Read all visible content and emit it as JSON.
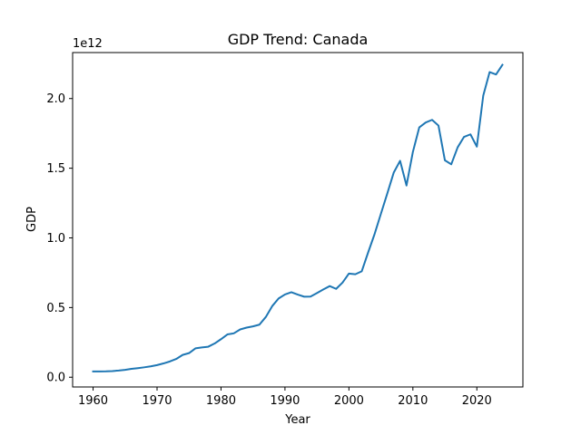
{
  "chart_data": {
    "type": "line",
    "title": "GDP Trend: Canada",
    "xlabel": "Year",
    "ylabel": "GDP",
    "y_scale_label": "1e12",
    "xlim": [
      1956.8,
      2027.2
    ],
    "ylim": [
      -70000000000.0,
      2330000000000.0
    ],
    "x_ticks": [
      1960,
      1970,
      1980,
      1990,
      2000,
      2010,
      2020
    ],
    "x_tick_labels": [
      "1960",
      "1970",
      "1980",
      "1990",
      "2000",
      "2010",
      "2020"
    ],
    "y_ticks": [
      0,
      500000000000.0,
      1000000000000.0,
      1500000000000.0,
      2000000000000.0
    ],
    "y_tick_labels": [
      "0.0",
      "0.5",
      "1.0",
      "1.5",
      "2.0"
    ],
    "grid": false,
    "series": [
      {
        "color": "#1f77b4",
        "x": [
          1960,
          1961,
          1962,
          1963,
          1964,
          1965,
          1966,
          1967,
          1968,
          1969,
          1970,
          1971,
          1972,
          1973,
          1974,
          1975,
          1976,
          1977,
          1978,
          1979,
          1980,
          1981,
          1982,
          1983,
          1984,
          1985,
          1986,
          1987,
          1988,
          1989,
          1990,
          1991,
          1992,
          1993,
          1994,
          1995,
          1996,
          1997,
          1998,
          1999,
          2000,
          2001,
          2002,
          2003,
          2004,
          2005,
          2006,
          2007,
          2008,
          2009,
          2010,
          2011,
          2012,
          2013,
          2014,
          2015,
          2016,
          2017,
          2018,
          2019,
          2020,
          2021,
          2022,
          2023,
          2024
        ],
        "y": [
          41000000000.0,
          41000000000.0,
          42000000000.0,
          44000000000.0,
          48000000000.0,
          53000000000.0,
          60000000000.0,
          65000000000.0,
          71000000000.0,
          78000000000.0,
          87000000000.0,
          99000000000.0,
          113000000000.0,
          131000000000.0,
          160000000000.0,
          173000000000.0,
          207000000000.0,
          214000000000.0,
          219000000000.0,
          242000000000.0,
          273000000000.0,
          307000000000.0,
          315000000000.0,
          343000000000.0,
          356000000000.0,
          365000000000.0,
          377000000000.0,
          432000000000.0,
          510000000000.0,
          565000000000.0,
          594000000000.0,
          610000000000.0,
          593000000000.0,
          578000000000.0,
          579000000000.0,
          604000000000.0,
          630000000000.0,
          654000000000.0,
          634000000000.0,
          679000000000.0,
          744000000000.0,
          739000000000.0,
          760000000000.0,
          895000000000.0,
          1026000000000.0,
          1173000000000.0,
          1319000000000.0,
          1468000000000.0,
          1553000000000.0,
          1376000000000.0,
          1617000000000.0,
          1793000000000.0,
          1828000000000.0,
          1847000000000.0,
          1806000000000.0,
          1557000000000.0,
          1528000000000.0,
          1650000000000.0,
          1725000000000.0,
          1743000000000.0,
          1655000000000.0,
          2021000000000.0,
          2190000000000.0,
          2173000000000.0,
          2242000000000.0
        ]
      }
    ]
  }
}
